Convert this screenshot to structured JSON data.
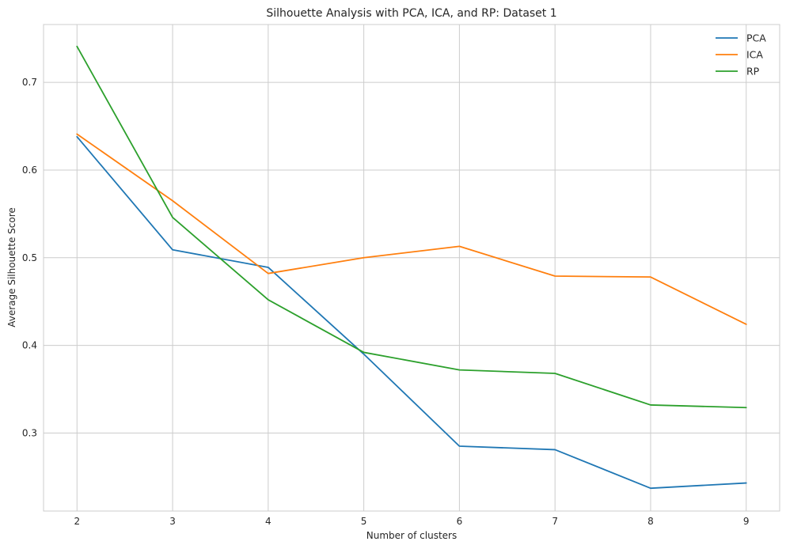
{
  "chart_data": {
    "type": "line",
    "title": "Silhouette Analysis with PCA, ICA, and RP:  Dataset 1",
    "xlabel": "Number of clusters",
    "ylabel": "Average Silhouette Score",
    "x": [
      2,
      3,
      4,
      5,
      6,
      7,
      8,
      9
    ],
    "xticks": [
      2,
      3,
      4,
      5,
      6,
      7,
      8,
      9
    ],
    "yticks": [
      0.3,
      0.4,
      0.5,
      0.6,
      0.7
    ],
    "xlim": [
      1.65,
      9.35
    ],
    "ylim": [
      0.211,
      0.766
    ],
    "grid": true,
    "legend_position": "top-right",
    "series": [
      {
        "name": "PCA",
        "color": "#1f77b4",
        "values": [
          0.638,
          0.509,
          0.489,
          0.39,
          0.285,
          0.281,
          0.237,
          0.243
        ]
      },
      {
        "name": "ICA",
        "color": "#ff7f0e",
        "values": [
          0.641,
          0.565,
          0.482,
          0.5,
          0.513,
          0.479,
          0.478,
          0.424
        ]
      },
      {
        "name": "RP",
        "color": "#2ca02c",
        "values": [
          0.741,
          0.546,
          0.452,
          0.392,
          0.372,
          0.368,
          0.332,
          0.329
        ]
      }
    ]
  }
}
